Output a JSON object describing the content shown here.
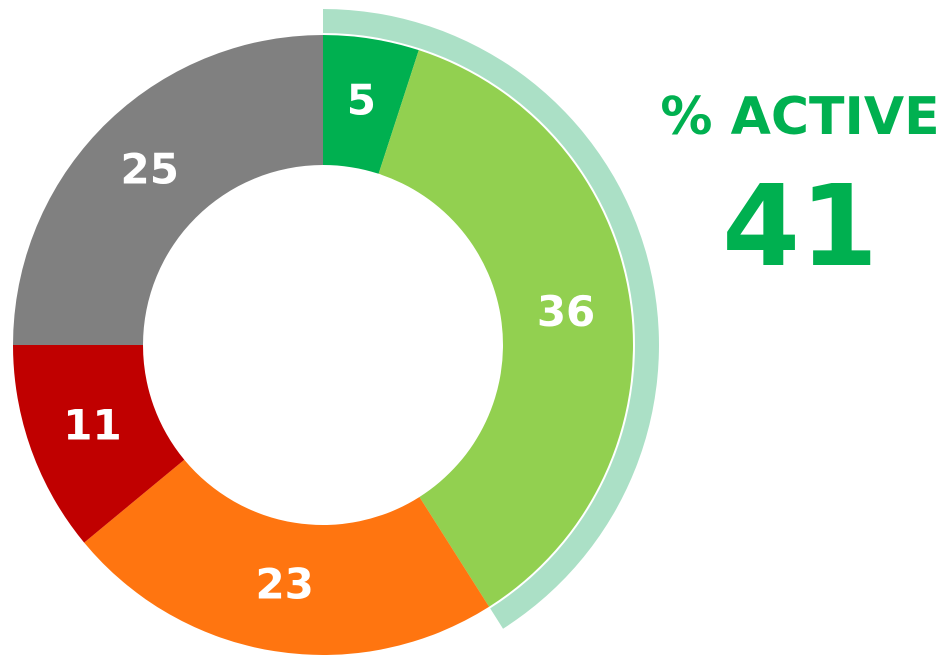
{
  "chart_data": {
    "type": "donut",
    "values": [
      5,
      36,
      23,
      11,
      25
    ],
    "colors": [
      "#00b050",
      "#92d050",
      "#ff7510",
      "#c00000",
      "#808080"
    ],
    "kpi_label": "% ACTIVE",
    "kpi_value": 41,
    "kpi_color": "#00b050"
  }
}
